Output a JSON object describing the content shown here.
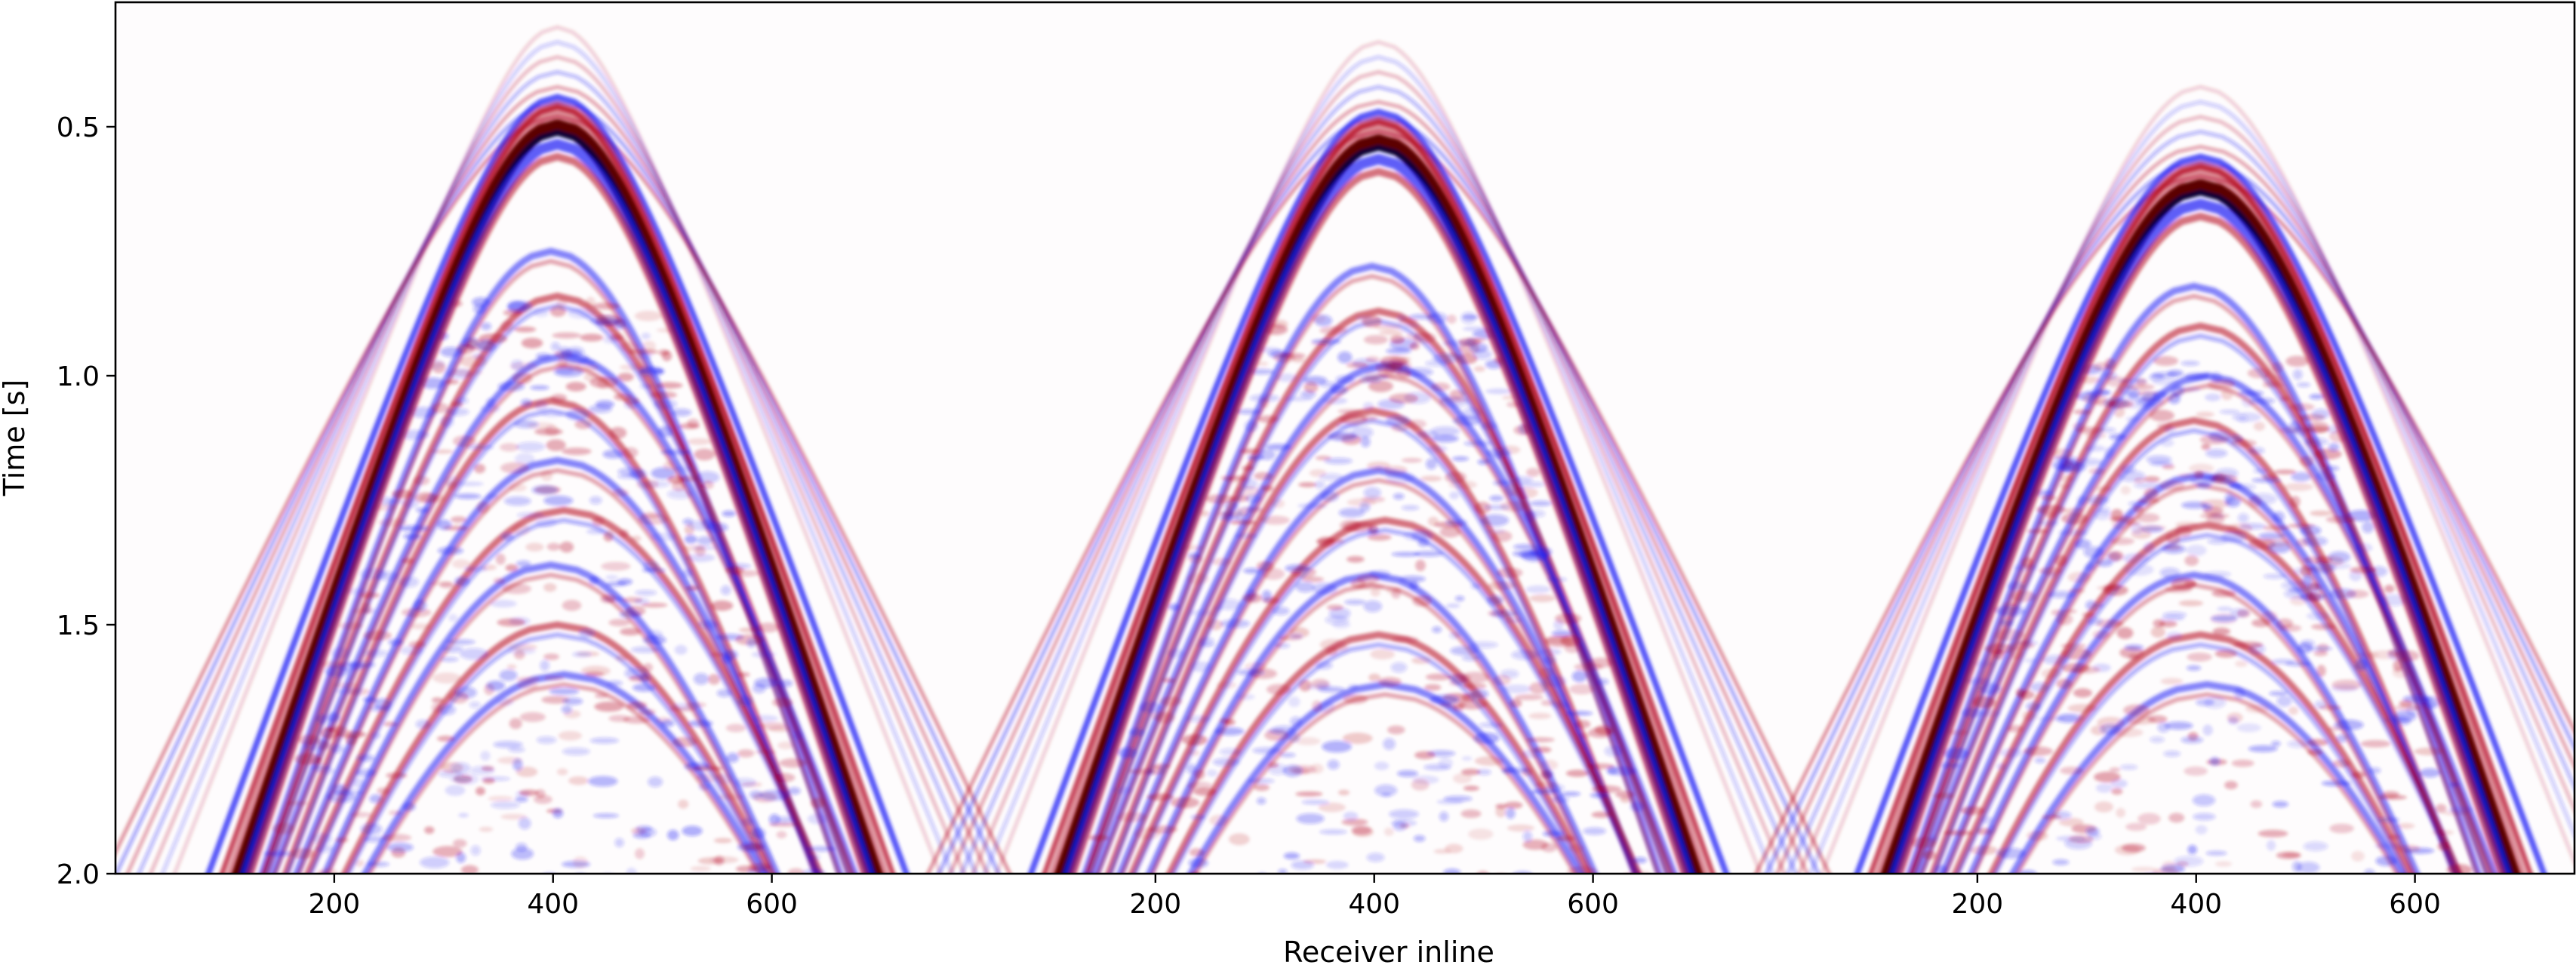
{
  "chart_data": {
    "type": "heatmap",
    "title": "",
    "xlabel": "Receiver inline",
    "ylabel": "Time [s]",
    "colormap": "seismic",
    "colors": {
      "positive": "#b2001a",
      "negative": "#1f1ff5",
      "extreme_positive": "#5c0000",
      "extreme_negative": "#00003a",
      "zero": "#ffffff"
    },
    "grid": false,
    "legend": "none",
    "ylim": [
      2.0,
      0.25
    ],
    "yticks": [
      0.5,
      1.0,
      1.5,
      2.0
    ],
    "ytick_labels": [
      "0.5",
      "1.0",
      "1.5",
      "2.0"
    ],
    "panels": [
      {
        "name": "",
        "xlim": [
          0,
          750
        ],
        "xticks": [
          200,
          400,
          600
        ],
        "xtick_labels": [
          "200",
          "400",
          "600"
        ],
        "apex": {
          "x": 404,
          "t": 0.5
        },
        "direct_wave_velocity_receivers_per_s": 150,
        "direct_wave_at_bottom": {
          "left": 185,
          "right": 625,
          "t": 2.0
        },
        "event_apex_times_s": [
          0.75,
          0.84,
          0.96,
          1.05,
          1.17,
          1.27,
          1.38,
          1.5,
          1.6
        ]
      },
      {
        "name": "",
        "xlim": [
          0,
          750
        ],
        "xticks": [
          200,
          400,
          600
        ],
        "xtick_labels": [
          "200",
          "400",
          "600"
        ],
        "apex": {
          "x": 404,
          "t": 0.53
        },
        "direct_wave_velocity_receivers_per_s": 150,
        "direct_wave_at_bottom": {
          "left": 185,
          "right": 625,
          "t": 2.0
        },
        "event_apex_times_s": [
          0.78,
          0.87,
          0.98,
          1.07,
          1.19,
          1.29,
          1.4,
          1.52,
          1.62
        ]
      },
      {
        "name": "",
        "xlim": [
          0,
          750
        ],
        "xticks": [
          200,
          400,
          600
        ],
        "xtick_labels": [
          "200",
          "400",
          "600"
        ],
        "apex": {
          "x": 404,
          "t": 0.62
        },
        "direct_wave_velocity_receivers_per_s": 150,
        "direct_wave_at_bottom": {
          "left": 185,
          "right": 625,
          "t": 2.0
        },
        "event_apex_times_s": [
          0.82,
          0.9,
          1.0,
          1.09,
          1.2,
          1.3,
          1.4,
          1.52,
          1.62
        ]
      }
    ]
  }
}
